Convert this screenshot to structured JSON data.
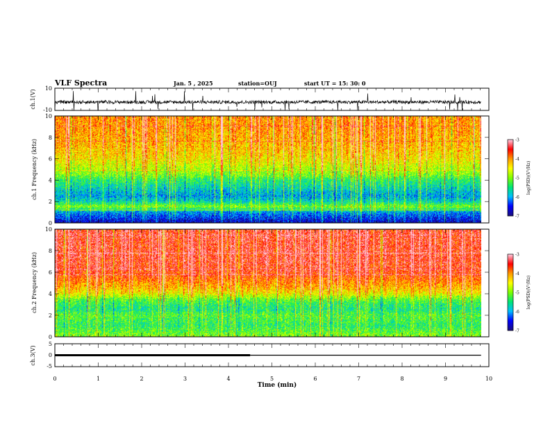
{
  "header": {
    "title": "VLF Spectra",
    "date": "Jan. 5 , 2025",
    "station": "station=OUJ",
    "start_ut": "start UT =  15: 30: 0"
  },
  "chart_data": [
    {
      "type": "line",
      "panel": "ch1-waveform",
      "ylabel": "ch.1(V)",
      "ylim": [
        -10,
        10
      ],
      "y_ticklabels": [
        "10",
        "-10"
      ],
      "xlim": [
        0,
        10
      ],
      "baseline": -2.5
    },
    {
      "type": "heatmap",
      "panel": "ch1-spectrogram",
      "ylabel": "ch.1 Frequency (kHz)",
      "ylim": [
        0,
        10
      ],
      "y_ticklabels": [
        "0",
        "2",
        "4",
        "6",
        "8",
        "10"
      ],
      "xlim": [
        0,
        9.82
      ],
      "colorbar": {
        "label": "log(PSD)(V²/Hz)",
        "range": [
          -7,
          -3
        ],
        "ticklabels": [
          "-3",
          "-4",
          "-5",
          "-6",
          "-7"
        ]
      },
      "level_profile_freq_khz": [
        0,
        0.5,
        1,
        1.5,
        2,
        2.5,
        3,
        3.5,
        4,
        4.5,
        5,
        6,
        7,
        8,
        9,
        10
      ],
      "level_profile_log_psd": [
        -6.8,
        -6.4,
        -6.0,
        -5.0,
        -5.7,
        -6.0,
        -5.8,
        -5.6,
        -5.4,
        -5.0,
        -4.8,
        -4.4,
        -4.2,
        -4.1,
        -4.0,
        -4.0
      ]
    },
    {
      "type": "heatmap",
      "panel": "ch2-spectrogram",
      "ylabel": "ch.2 Frequency (kHz)",
      "ylim": [
        0,
        10
      ],
      "y_ticklabels": [
        "0",
        "2",
        "4",
        "6",
        "8",
        "10"
      ],
      "xlim": [
        0,
        9.82
      ],
      "colorbar": {
        "label": "log(PSD)(V²/Hz)",
        "range": [
          -7,
          -3
        ],
        "ticklabels": [
          "-3",
          "-4",
          "-5",
          "-6",
          "-7"
        ]
      },
      "level_profile_freq_khz": [
        0,
        0.5,
        1,
        1.5,
        2,
        2.5,
        3,
        3.5,
        4,
        4.5,
        5,
        6,
        7,
        8,
        9,
        10
      ],
      "level_profile_log_psd": [
        -5.0,
        -5.2,
        -5.4,
        -5.3,
        -5.2,
        -5.5,
        -5.4,
        -5.1,
        -4.5,
        -4.2,
        -4.0,
        -3.6,
        -3.5,
        -3.5,
        -3.5,
        -3.5
      ]
    },
    {
      "type": "line",
      "panel": "ch3-waveform",
      "ylabel": "ch.3(V)",
      "ylim": [
        -5,
        5
      ],
      "y_ticklabels": [
        "5",
        "0",
        "-5"
      ],
      "xlim": [
        0,
        10
      ],
      "series": [
        {
          "x": [
            0,
            4.5
          ],
          "y": [
            0,
            0
          ],
          "style": "thick"
        },
        {
          "x": [
            4.5,
            9.82
          ],
          "y": [
            0,
            0
          ],
          "style": "thin"
        }
      ]
    }
  ],
  "x_axis": {
    "label": "Time (min)",
    "range": [
      0,
      10
    ],
    "ticklabels": [
      "0",
      "1",
      "2",
      "3",
      "4",
      "5",
      "6",
      "7",
      "8",
      "9",
      "10"
    ]
  },
  "colors": {
    "colormap": [
      "#1a0f80",
      "#0000ff",
      "#00bfff",
      "#00e676",
      "#7fff00",
      "#ffff00",
      "#ff9900",
      "#ff0000",
      "#ffc8dc"
    ]
  }
}
